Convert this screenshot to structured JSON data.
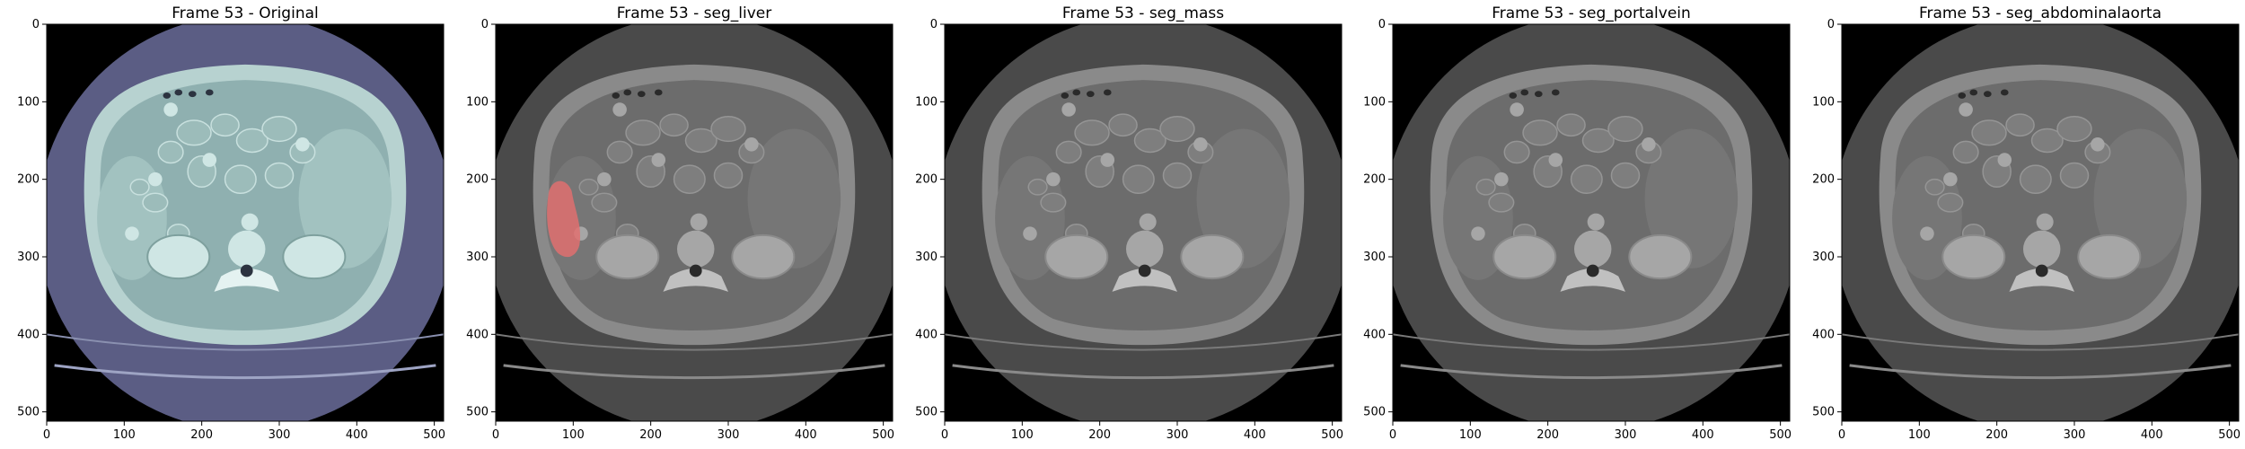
{
  "figure": {
    "panels": [
      {
        "title": "Frame 53 - Original",
        "tint": "bone",
        "overlay": null
      },
      {
        "title": "Frame 53 - seg_liver",
        "tint": "gray",
        "overlay": {
          "color": "#e07070",
          "label": "liver"
        }
      },
      {
        "title": "Frame 53 - seg_mass",
        "tint": "gray",
        "overlay": null
      },
      {
        "title": "Frame 53 - seg_portalvein",
        "tint": "gray",
        "overlay": null
      },
      {
        "title": "Frame 53 - seg_abdominalaorta",
        "tint": "gray",
        "overlay": null
      }
    ],
    "x_ticks": [
      "0",
      "100",
      "200",
      "300",
      "400",
      "500"
    ],
    "y_ticks": [
      "0",
      "100",
      "200",
      "300",
      "400",
      "500"
    ],
    "image_size": 512,
    "colors": {
      "background": "#000000",
      "bone_body": "#8fb0b0",
      "bone_rim": "#5b5d84",
      "gray_body": "#6c6c6c",
      "gray_rim": "#4a4a4a",
      "overlay_liver": "#e07070"
    }
  }
}
